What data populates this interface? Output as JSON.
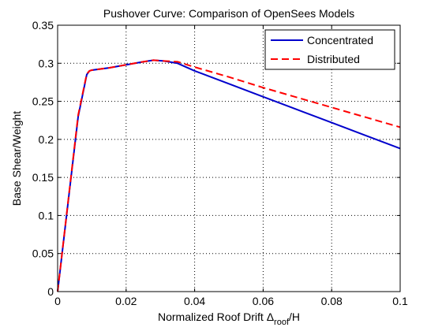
{
  "chart_data": {
    "type": "line",
    "title": "Pushover Curve:  Comparison of OpenSees Models",
    "xlabel": {
      "main": "Normalized Roof Drift Δ",
      "subscript": "roof",
      "suffix": "/H"
    },
    "ylabel": "Base Shear/Weight",
    "xlim": [
      0,
      0.1
    ],
    "ylim": [
      0,
      0.35
    ],
    "xticks": [
      0,
      0.02,
      0.04,
      0.06,
      0.08,
      0.1
    ],
    "xtick_labels": [
      "0",
      "0.02",
      "0.04",
      "0.06",
      "0.08",
      "0.1"
    ],
    "yticks": [
      0,
      0.05,
      0.1,
      0.15,
      0.2,
      0.25,
      0.3,
      0.35
    ],
    "ytick_labels": [
      "0",
      "0.05",
      "0.1",
      "0.15",
      "0.2",
      "0.25",
      "0.3",
      "0.35"
    ],
    "grid": true,
    "legend_position": "top-right",
    "series": [
      {
        "name": "Concentrated",
        "color": "#0000cc",
        "dash": "solid",
        "x": [
          0,
          0.006,
          0.0085,
          0.0093,
          0.01,
          0.015,
          0.02,
          0.025,
          0.028,
          0.031,
          0.035,
          0.04,
          0.05,
          0.06,
          0.07,
          0.08,
          0.09,
          0.1
        ],
        "y": [
          0,
          0.23,
          0.285,
          0.29,
          0.291,
          0.294,
          0.298,
          0.302,
          0.304,
          0.303,
          0.3,
          0.29,
          0.273,
          0.256,
          0.239,
          0.222,
          0.205,
          0.188
        ]
      },
      {
        "name": "Distributed",
        "color": "#ff0000",
        "dash": "dashed",
        "x": [
          0,
          0.006,
          0.0085,
          0.0093,
          0.01,
          0.015,
          0.02,
          0.025,
          0.028,
          0.031,
          0.035,
          0.04,
          0.05,
          0.06,
          0.07,
          0.08,
          0.09,
          0.1
        ],
        "y": [
          0,
          0.232,
          0.286,
          0.29,
          0.291,
          0.294,
          0.298,
          0.302,
          0.304,
          0.303,
          0.302,
          0.295,
          0.282,
          0.268,
          0.255,
          0.242,
          0.229,
          0.216
        ]
      }
    ]
  }
}
